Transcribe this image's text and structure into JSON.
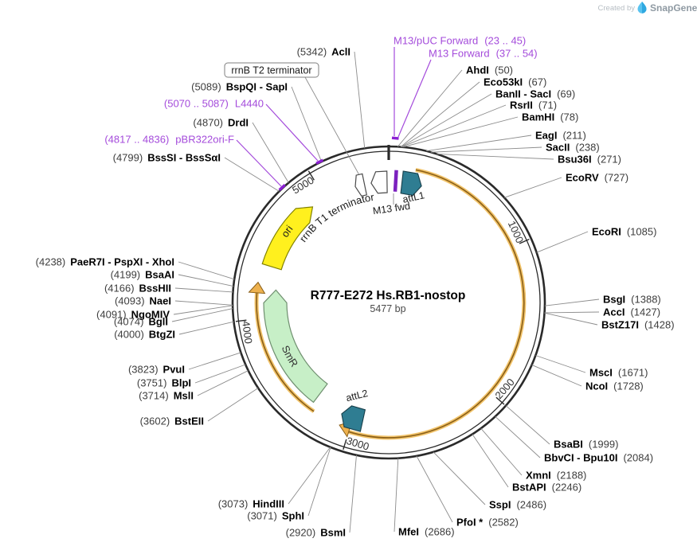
{
  "branding": {
    "created_by": "Created by",
    "brand": "SnapGene"
  },
  "plasmid": {
    "title": "R777-E272 Hs.RB1-nostop",
    "length_label": "5477 bp",
    "length_bp": 5477
  },
  "ticks": [
    "1000",
    "2000",
    "3000",
    "4000",
    "5000"
  ],
  "features": {
    "ori": "ori",
    "smr": "SmR",
    "t1": "rrnB T1 terminator",
    "t2": "rrnB T2 terminator",
    "m13fwd": "M13 fwd",
    "attl1": "attL1",
    "attl2": "attL2"
  },
  "primers": [
    {
      "name": "M13/pUC Forward",
      "range": "(23 .. 45)"
    },
    {
      "name": "M13 Forward",
      "range": "(37 .. 54)"
    },
    {
      "name": "L4440",
      "range": "(5070 .. 5087)"
    },
    {
      "name": "pBR322ori-F",
      "range": "(4817 .. 4836)"
    }
  ],
  "sites_left": [
    {
      "name": "AclI",
      "pos": "(5342)"
    },
    {
      "name": "BspQI - SapI",
      "pos": "(5089)"
    },
    {
      "name": "DrdI",
      "pos": "(4870)"
    },
    {
      "name": "BssSI - BssSαI",
      "pos": "(4799)"
    },
    {
      "name": "PaeR7I - PspXI - XhoI",
      "pos": "(4238)"
    },
    {
      "name": "BsaAI",
      "pos": "(4199)"
    },
    {
      "name": "BssHII",
      "pos": "(4166)"
    },
    {
      "name": "NaeI",
      "pos": "(4093)"
    },
    {
      "name": "NgoMIV",
      "pos": "(4091)"
    },
    {
      "name": "BglI",
      "pos": "(4074)"
    },
    {
      "name": "BtgZI",
      "pos": "(4000)"
    },
    {
      "name": "PvuI",
      "pos": "(3823)"
    },
    {
      "name": "BlpI",
      "pos": "(3751)"
    },
    {
      "name": "MslI",
      "pos": "(3714)"
    },
    {
      "name": "BstEII",
      "pos": "(3602)"
    },
    {
      "name": "HindIII",
      "pos": "(3073)"
    },
    {
      "name": "SphI",
      "pos": "(3071)"
    },
    {
      "name": "BsmI",
      "pos": "(2920)"
    }
  ],
  "sites_right": [
    {
      "name": "AhdI",
      "pos": "(50)"
    },
    {
      "name": "Eco53kI",
      "pos": "(67)"
    },
    {
      "name": "BanII - SacI",
      "pos": "(69)"
    },
    {
      "name": "RsrII",
      "pos": "(71)"
    },
    {
      "name": "BamHI",
      "pos": "(78)"
    },
    {
      "name": "EagI",
      "pos": "(211)"
    },
    {
      "name": "SacII",
      "pos": "(238)"
    },
    {
      "name": "Bsu36I",
      "pos": "(271)"
    },
    {
      "name": "EcoRV",
      "pos": "(727)"
    },
    {
      "name": "EcoRI",
      "pos": "(1085)"
    },
    {
      "name": "BsgI",
      "pos": "(1388)"
    },
    {
      "name": "AccI",
      "pos": "(1427)"
    },
    {
      "name": "BstZ17I",
      "pos": "(1428)"
    },
    {
      "name": "MscI",
      "pos": "(1671)"
    },
    {
      "name": "NcoI",
      "pos": "(1728)"
    },
    {
      "name": "BsaBI",
      "pos": "(1999)"
    },
    {
      "name": "BbvCI - Bpu10I",
      "pos": "(2084)"
    },
    {
      "name": "XmnI",
      "pos": "(2188)"
    },
    {
      "name": "BstAPI",
      "pos": "(2246)"
    },
    {
      "name": "SspI",
      "pos": "(2486)"
    },
    {
      "name": "PfoI *",
      "pos": "(2582)"
    },
    {
      "name": "MfeI",
      "pos": "(2686)"
    }
  ],
  "colors": {
    "ring": "#2a2a2a",
    "callout": "#8c8c8c",
    "primer_purple": "#A44BDB",
    "primer_tick": "#8B1FD3",
    "m13_bar": "#7B21BE",
    "teal": "#2F7D92",
    "teal_dark": "#173E49",
    "gold_light": "#F2C46B",
    "gold_dark": "#8A5F18",
    "gold_head": "#EDB14E",
    "ori_yellow": "#FFF01E",
    "ori_outline": "#808000",
    "smr_green": "#C7EFC7",
    "smr_outline": "#6F8F6F",
    "site_pos_gray": "#3d3d3d",
    "brand_gray": "#8F9AA3",
    "brand_light": "#B7Bec4",
    "brand_blue": "#59C3F0",
    "brand_blue_dark": "#2FA8E0"
  }
}
